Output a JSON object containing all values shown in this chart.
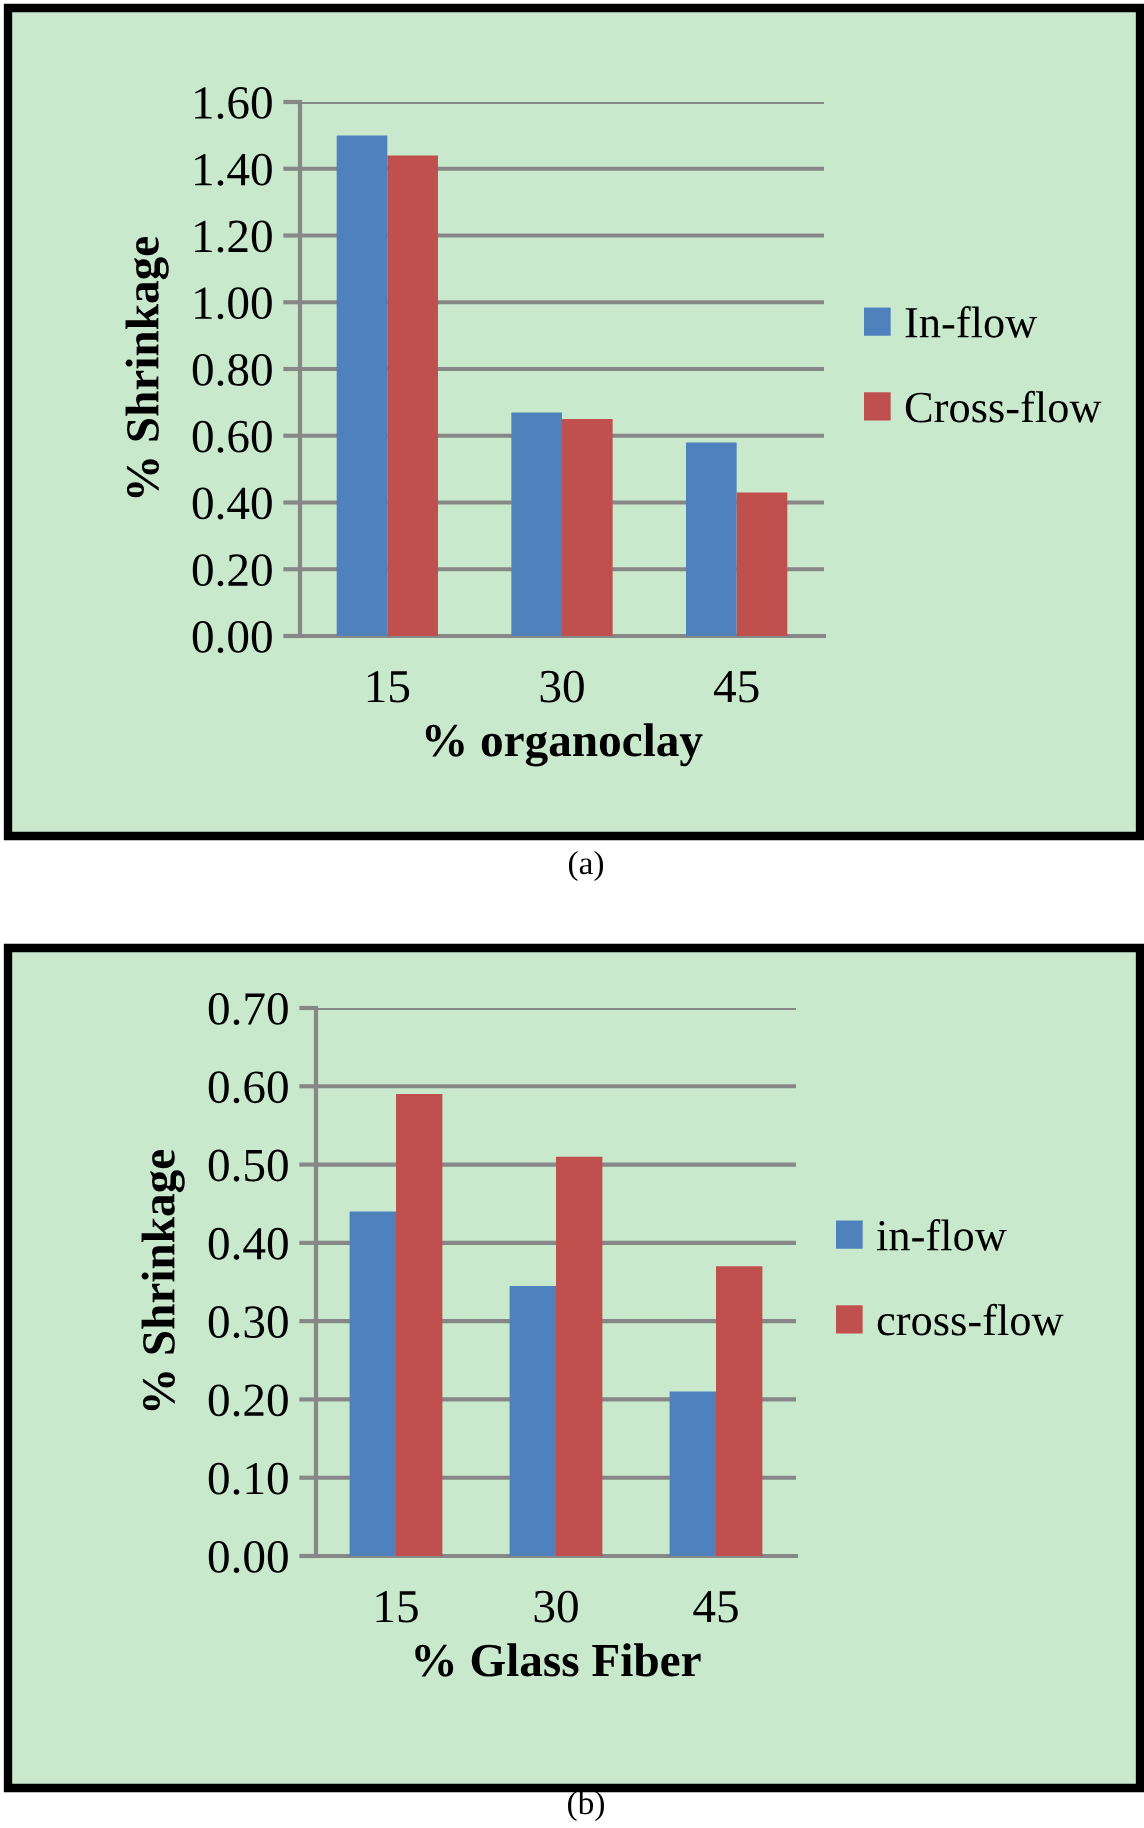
{
  "chart_data": [
    {
      "type": "bar",
      "xlabel": "% organoclay",
      "ylabel": "% Shrinkage",
      "categories": [
        "15",
        "30",
        "45"
      ],
      "series": [
        {
          "name": "In-flow",
          "color": "#4f81bd",
          "values": [
            1.5,
            0.67,
            0.58
          ]
        },
        {
          "name": "Cross-flow",
          "color": "#c0504d",
          "values": [
            1.44,
            0.65,
            0.43
          ]
        }
      ],
      "ylim": [
        0,
        1.6
      ],
      "yticks": [
        {
          "value": 0,
          "label": "0.00"
        },
        {
          "value": 0.2,
          "label": "0.20"
        },
        {
          "value": 0.4,
          "label": "0.40"
        },
        {
          "value": 0.6,
          "label": "0.60"
        },
        {
          "value": 0.8,
          "label": "0.80"
        },
        {
          "value": 1.0,
          "label": "1.00"
        },
        {
          "value": 1.2,
          "label": "1.20"
        },
        {
          "value": 1.4,
          "label": "1.40"
        },
        {
          "value": 1.6,
          "label": "1.60"
        }
      ],
      "grid": "y",
      "legend": "right",
      "annotations": [
        "(a)"
      ]
    },
    {
      "type": "bar",
      "xlabel": "% Glass Fiber",
      "ylabel": "% Shrinkage",
      "categories": [
        "15",
        "30",
        "45"
      ],
      "series": [
        {
          "name": "in-flow",
          "color": "#4f81bd",
          "values": [
            0.44,
            0.345,
            0.21
          ]
        },
        {
          "name": "cross-flow",
          "color": "#c0504d",
          "values": [
            0.59,
            0.51,
            0.37
          ]
        }
      ],
      "ylim": [
        0,
        0.7
      ],
      "yticks": [
        {
          "value": 0,
          "label": "0.00"
        },
        {
          "value": 0.1,
          "label": "0.10"
        },
        {
          "value": 0.2,
          "label": "0.20"
        },
        {
          "value": 0.3,
          "label": "0.30"
        },
        {
          "value": 0.4,
          "label": "0.40"
        },
        {
          "value": 0.5,
          "label": "0.50"
        },
        {
          "value": 0.6,
          "label": "0.60"
        },
        {
          "value": 0.7,
          "label": "0.70"
        }
      ],
      "grid": "y",
      "legend": "right",
      "annotations": [
        "(b)"
      ]
    }
  ]
}
